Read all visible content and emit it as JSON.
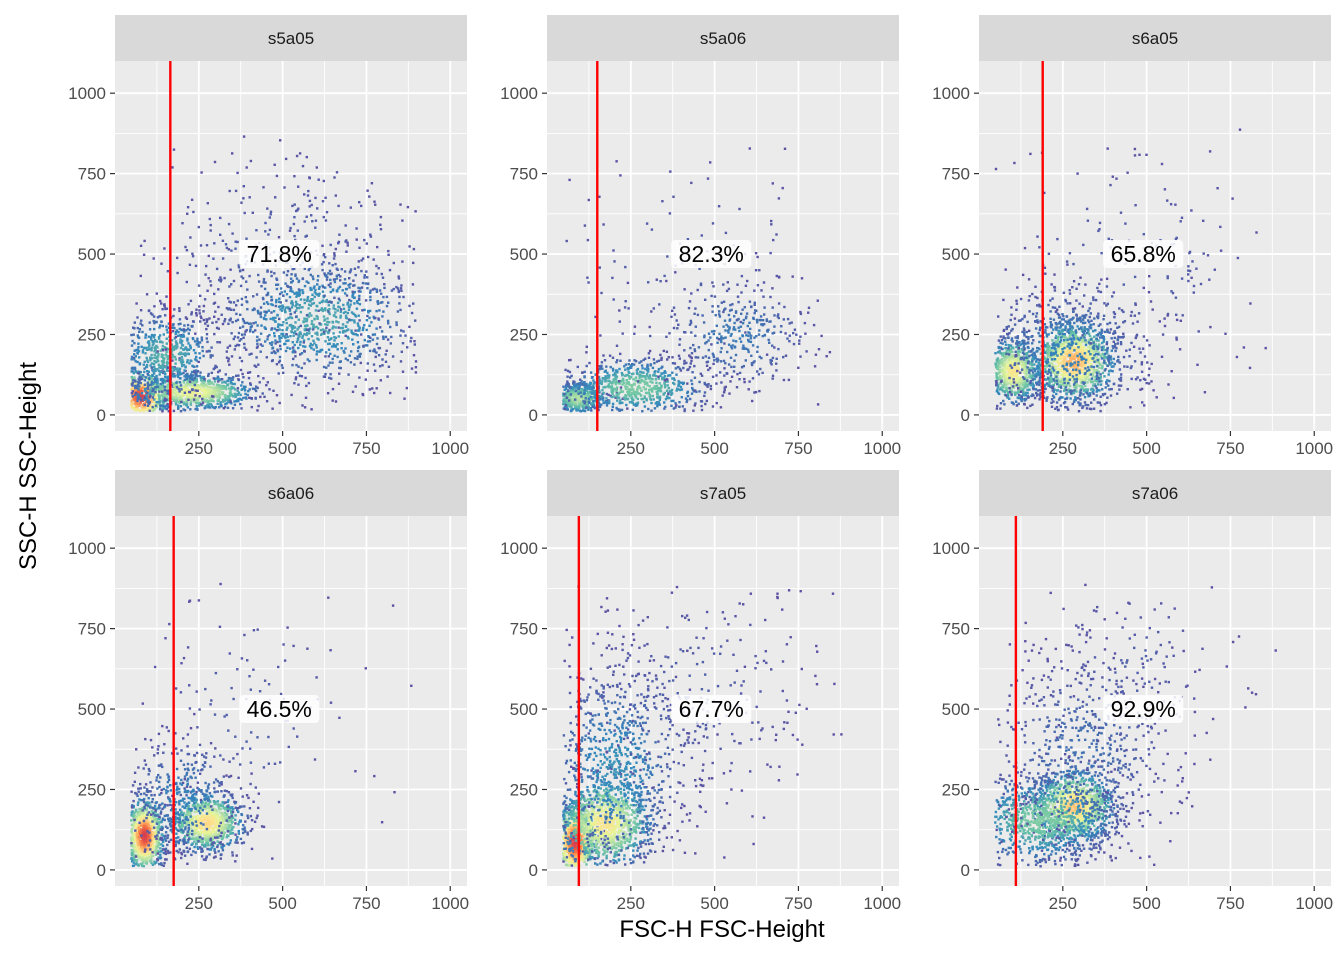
{
  "chart_data": {
    "type": "scatter",
    "subtype": "faceted-density-scatter",
    "xlabel": "FSC-H FSC-Height",
    "ylabel": "SSC-H SSC-Height",
    "xlim": [
      0,
      1050
    ],
    "ylim": [
      -50,
      1100
    ],
    "xticks": [
      250,
      500,
      750,
      1000
    ],
    "yticks": [
      0,
      250,
      500,
      750,
      1000
    ],
    "grid": true,
    "colors": {
      "panel_background": "#ebebeb",
      "strip_background": "#d9d9d9",
      "gridline": "#ffffff",
      "gate_line": "#ff0000",
      "density_scale": [
        "#5e4fa2",
        "#3288bd",
        "#66c2a5",
        "#abdda4",
        "#e6f598",
        "#fee08b",
        "#fdae61",
        "#f46d43",
        "#d53e4f"
      ]
    },
    "panels": [
      {
        "name": "s5a05",
        "gate_x": 165,
        "label": "71.8%",
        "label_x": 490,
        "label_y": 500,
        "clusters": [
          {
            "x": 75,
            "y": 60,
            "sx": 40,
            "sy": 40,
            "n": 550,
            "d": 1.0
          },
          {
            "x": 230,
            "y": 75,
            "sx": 90,
            "sy": 28,
            "n": 800,
            "d": 0.55
          },
          {
            "x": 600,
            "y": 300,
            "sx": 150,
            "sy": 100,
            "n": 900,
            "d": 0.2
          },
          {
            "x": 150,
            "y": 190,
            "sx": 80,
            "sy": 70,
            "n": 600,
            "d": 0.22
          },
          {
            "x": 500,
            "y": 420,
            "sx": 230,
            "sy": 220,
            "n": 450,
            "d": 0.05
          }
        ]
      },
      {
        "name": "s5a06",
        "gate_x": 150,
        "label": "82.3%",
        "label_x": 490,
        "label_y": 500,
        "clusters": [
          {
            "x": 90,
            "y": 55,
            "sx": 40,
            "sy": 25,
            "n": 500,
            "d": 0.4
          },
          {
            "x": 260,
            "y": 90,
            "sx": 110,
            "sy": 45,
            "n": 700,
            "d": 0.3
          },
          {
            "x": 560,
            "y": 250,
            "sx": 120,
            "sy": 90,
            "n": 350,
            "d": 0.1
          },
          {
            "x": 400,
            "y": 420,
            "sx": 250,
            "sy": 220,
            "n": 120,
            "d": 0.04
          }
        ]
      },
      {
        "name": "s6a05",
        "gate_x": 190,
        "label": "65.8%",
        "label_x": 490,
        "label_y": 500,
        "clusters": [
          {
            "x": 100,
            "y": 140,
            "sx": 40,
            "sy": 50,
            "n": 700,
            "d": 0.6
          },
          {
            "x": 280,
            "y": 170,
            "sx": 60,
            "sy": 60,
            "n": 1100,
            "d": 0.75
          },
          {
            "x": 260,
            "y": 200,
            "sx": 130,
            "sy": 110,
            "n": 650,
            "d": 0.12
          },
          {
            "x": 450,
            "y": 450,
            "sx": 220,
            "sy": 220,
            "n": 150,
            "d": 0.04
          }
        ]
      },
      {
        "name": "s6a06",
        "gate_x": 175,
        "label": "46.5%",
        "label_x": 490,
        "label_y": 500,
        "clusters": [
          {
            "x": 85,
            "y": 110,
            "sx": 28,
            "sy": 55,
            "n": 900,
            "d": 1.0
          },
          {
            "x": 270,
            "y": 150,
            "sx": 55,
            "sy": 45,
            "n": 800,
            "d": 0.65
          },
          {
            "x": 200,
            "y": 220,
            "sx": 90,
            "sy": 100,
            "n": 400,
            "d": 0.12
          },
          {
            "x": 380,
            "y": 450,
            "sx": 200,
            "sy": 230,
            "n": 130,
            "d": 0.04
          }
        ]
      },
      {
        "name": "s7a05",
        "gate_x": 95,
        "label": "67.7%",
        "label_x": 490,
        "label_y": 500,
        "clusters": [
          {
            "x": 80,
            "y": 90,
            "sx": 30,
            "sy": 60,
            "n": 900,
            "d": 1.0
          },
          {
            "x": 170,
            "y": 150,
            "sx": 70,
            "sy": 70,
            "n": 1000,
            "d": 0.6
          },
          {
            "x": 200,
            "y": 320,
            "sx": 110,
            "sy": 160,
            "n": 800,
            "d": 0.15
          },
          {
            "x": 420,
            "y": 550,
            "sx": 200,
            "sy": 200,
            "n": 300,
            "d": 0.04
          }
        ]
      },
      {
        "name": "s7a06",
        "gate_x": 110,
        "label": "92.9%",
        "label_x": 490,
        "label_y": 500,
        "clusters": [
          {
            "x": 280,
            "y": 200,
            "sx": 60,
            "sy": 55,
            "n": 1000,
            "d": 0.7
          },
          {
            "x": 180,
            "y": 160,
            "sx": 110,
            "sy": 70,
            "n": 900,
            "d": 0.3
          },
          {
            "x": 300,
            "y": 350,
            "sx": 140,
            "sy": 170,
            "n": 550,
            "d": 0.08
          },
          {
            "x": 450,
            "y": 600,
            "sx": 150,
            "sy": 180,
            "n": 150,
            "d": 0.04
          }
        ]
      }
    ]
  }
}
